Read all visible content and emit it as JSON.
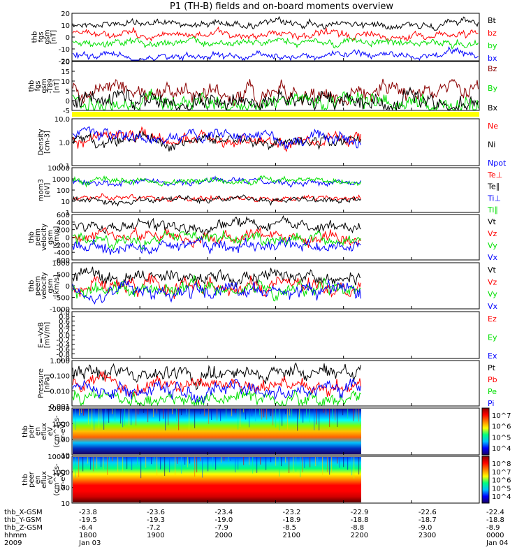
{
  "title": "P1 (TH-B) fields and on-board moments overview",
  "colors": {
    "black": "#000000",
    "red": "#ff0000",
    "green": "#00e000",
    "blue": "#0000ff",
    "darkred": "#8b0000",
    "yellow": "#ffff00"
  },
  "chart_data": [
    {
      "type": "line",
      "ylabel": [
        "thb",
        "fgs",
        "gsm",
        "[nT]"
      ],
      "ylim": [
        -20,
        20
      ],
      "yticks": [
        "20",
        "10",
        "0",
        "-10",
        "-20"
      ],
      "series": [
        {
          "name": "Bt",
          "color": "black"
        },
        {
          "name": "bz",
          "color": "red"
        },
        {
          "name": "by",
          "color": "green"
        },
        {
          "name": "bx",
          "color": "blue"
        }
      ]
    },
    {
      "type": "line",
      "ylabel": [
        "thb",
        "fgs",
        "gsm",
        "-T89",
        "[nT]"
      ],
      "ylim": [
        -7,
        20
      ],
      "yticks": [
        "20",
        "15",
        "10",
        "5",
        "0",
        "-5"
      ],
      "series": [
        {
          "name": "Bz",
          "color": "darkred"
        },
        {
          "name": "By",
          "color": "green"
        },
        {
          "name": "Bx",
          "color": "black"
        }
      ]
    },
    {
      "type": "line",
      "ylabel": [
        "Density",
        "[cm-3]"
      ],
      "scale": "log",
      "ylim": [
        0.1,
        10
      ],
      "yticks": [
        "10.0",
        "1.0",
        "0.1"
      ],
      "series": [
        {
          "name": "Ne",
          "color": "red"
        },
        {
          "name": "Ni",
          "color": "black"
        },
        {
          "name": "Npot",
          "color": "blue"
        }
      ]
    },
    {
      "type": "line",
      "ylabel": [
        "mom3",
        "[eV]"
      ],
      "scale": "log",
      "ylim": [
        1,
        10000
      ],
      "yticks": [
        "10000",
        "1000",
        "100",
        "10",
        "1"
      ],
      "series": [
        {
          "name": "Te⊥",
          "color": "red"
        },
        {
          "name": "Te∥",
          "color": "black"
        },
        {
          "name": "Ti⊥",
          "color": "blue"
        },
        {
          "name": "Ti∥",
          "color": "green"
        }
      ]
    },
    {
      "type": "line",
      "ylabel": [
        "thb",
        "peim",
        "velocity",
        "gsm",
        "[km/s]"
      ],
      "ylim": [
        -600,
        600
      ],
      "yticks": [
        "600",
        "400",
        "200",
        "0",
        "-200",
        "-400",
        "-600"
      ],
      "series": [
        {
          "name": "Vt",
          "color": "black"
        },
        {
          "name": "Vz",
          "color": "red"
        },
        {
          "name": "Vy",
          "color": "green"
        },
        {
          "name": "Vx",
          "color": "blue"
        }
      ]
    },
    {
      "type": "line",
      "ylabel": [
        "thb",
        "peem",
        "velocity",
        "gsm",
        "[km/s]"
      ],
      "ylim": [
        -1000,
        1000
      ],
      "yticks": [
        "1000",
        "500",
        "0",
        "-500",
        "-1000"
      ],
      "series": [
        {
          "name": "Vt",
          "color": "black"
        },
        {
          "name": "Vz",
          "color": "red"
        },
        {
          "name": "Vy",
          "color": "green"
        },
        {
          "name": "Vx",
          "color": "blue"
        }
      ]
    },
    {
      "type": "line",
      "ylabel": [
        "E=-VxB",
        "[mV/m]"
      ],
      "ylim": [
        -1,
        1
      ],
      "yticks": [
        "1.0",
        "0.8",
        "0.6",
        "0.4",
        "0.2",
        "0.0",
        "-0.2",
        "-0.4",
        "-0.6",
        "-0.8",
        "-1.0"
      ],
      "series": [
        {
          "name": "Ez",
          "color": "red"
        },
        {
          "name": "Ey",
          "color": "green"
        },
        {
          "name": "Ex",
          "color": "blue"
        }
      ]
    },
    {
      "type": "line",
      "ylabel": [
        "Pressure",
        "[nPa]"
      ],
      "scale": "log",
      "ylim": [
        0.001,
        1
      ],
      "yticks": [
        "1.000",
        "0.100",
        "0.010",
        "0.001"
      ],
      "series": [
        {
          "name": "Pt",
          "color": "black"
        },
        {
          "name": "Pb",
          "color": "red"
        },
        {
          "name": "Pe",
          "color": "green"
        },
        {
          "name": "Pi",
          "color": "blue"
        }
      ]
    },
    {
      "type": "heatmap",
      "ylabel": [
        "thb",
        "peir",
        "en",
        "eflux",
        "eV",
        "(cm^2-s-",
        "sr-eV)"
      ],
      "yticks": [
        "10000",
        "1000",
        "100",
        "10"
      ],
      "colorbar": [
        "10^7",
        "10^6",
        "10^5",
        "10^4"
      ]
    },
    {
      "type": "heatmap",
      "ylabel": [
        "thb",
        "peer",
        "en",
        "eflux",
        "eV",
        "(cm^2-s-",
        "sr-eV)"
      ],
      "yticks": [
        "10000",
        "1000",
        "100",
        "10"
      ],
      "colorbar": [
        "10^8",
        "10^7",
        "10^6",
        "10^5",
        "10^4"
      ]
    }
  ],
  "xaxis": {
    "rows": [
      {
        "label": "thb_X-GSM",
        "values": [
          "-23.8",
          "-23.6",
          "-23.4",
          "-23.2",
          "-22.9",
          "-22.6",
          "-22.4"
        ]
      },
      {
        "label": "thb_Y-GSM",
        "values": [
          "-19.5",
          "-19.3",
          "-19.0",
          "-18.9",
          "-18.8",
          "-18.7",
          "-18.8"
        ]
      },
      {
        "label": "thb_Z-GSM",
        "values": [
          "-6.4",
          "-7.2",
          "-7.9",
          "-8.5",
          "-8.8",
          "-9.0",
          "-8.9"
        ]
      },
      {
        "label": "hhmm",
        "values": [
          "1800",
          "1900",
          "2000",
          "2100",
          "2200",
          "2300",
          "0000"
        ]
      },
      {
        "label": "2009",
        "values": [
          "Jan 03",
          "",
          "",
          "",
          "",
          "",
          "Jan 04"
        ]
      }
    ]
  }
}
